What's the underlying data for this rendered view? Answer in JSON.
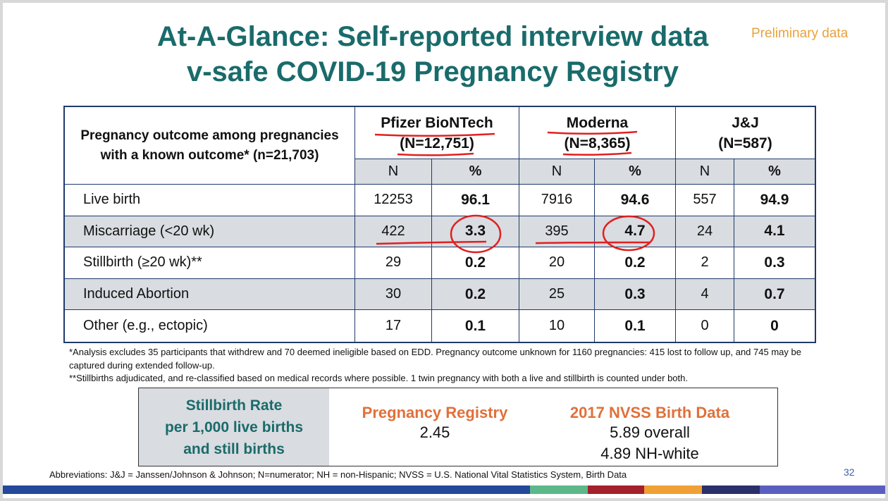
{
  "slide": {
    "title_line1": "At-A-Glance: Self-reported interview data",
    "title_line2": "v-safe COVID-19 Pregnancy Registry",
    "preliminary": "Preliminary data",
    "page_number": "32"
  },
  "table": {
    "corner_label": "Pregnancy outcome among pregnancies with a known outcome* (n=21,703)",
    "groups": [
      {
        "name": "Pfizer BioNTech",
        "n": "(N=12,751)"
      },
      {
        "name": "Moderna",
        "n": "(N=8,365)"
      },
      {
        "name": "J&J",
        "n": "(N=587)"
      }
    ],
    "sub_n": "N",
    "sub_pct": "%",
    "rows": [
      {
        "label": "Live birth",
        "values": [
          "12253",
          "96.1",
          "7916",
          "94.6",
          "557",
          "94.9"
        ]
      },
      {
        "label": "Miscarriage (<20 wk)",
        "values": [
          "422",
          "3.3",
          "395",
          "4.7",
          "24",
          "4.1"
        ]
      },
      {
        "label": "Stillbirth (≥20 wk)**",
        "values": [
          "29",
          "0.2",
          "20",
          "0.2",
          "2",
          "0.3"
        ]
      },
      {
        "label": "Induced Abortion",
        "values": [
          "30",
          "0.2",
          "25",
          "0.3",
          "4",
          "0.7"
        ]
      },
      {
        "label": "Other (e.g., ectopic)",
        "values": [
          "17",
          "0.1",
          "10",
          "0.1",
          "0",
          "0"
        ]
      }
    ]
  },
  "footnotes": {
    "note1": "*Analysis excludes 35 participants that withdrew and 70 deemed ineligible based on EDD. Pregnancy outcome unknown for 1160 pregnancies: 415 lost to follow up, and 745 may be captured during extended follow-up.",
    "note2": "**Stillbirths adjudicated, and re-classified based on medical records where possible. 1 twin pregnancy with both a live and stillbirth is counted under both."
  },
  "stillbirth_box": {
    "label_line1": "Stillbirth Rate",
    "label_line2": "per 1,000 live births",
    "label_line3": "and still births",
    "registry_title": "Pregnancy Registry",
    "registry_value": "2.45",
    "nvss_title": "2017 NVSS Birth Data",
    "nvss_overall": "5.89 overall",
    "nvss_nhwhite": "4.89 NH-white"
  },
  "abbreviations": "Abbreviations: J&J = Janssen/Johnson & Johnson; N=numerator; NH = non-Hispanic; NVSS = U.S. National Vital Statistics System, Birth Data",
  "colors": {
    "title_teal": "#1a6b6b",
    "accent_orange": "#e0703a",
    "annotation_red": "#e02020",
    "table_border": "#1f3a6b",
    "gray_fill": "#d9dce0"
  },
  "bottom_bar_colors": [
    "#24489a",
    "#5cb889",
    "#a4202b",
    "#f0a035",
    "#2b2f6a",
    "#5a5fbf"
  ]
}
